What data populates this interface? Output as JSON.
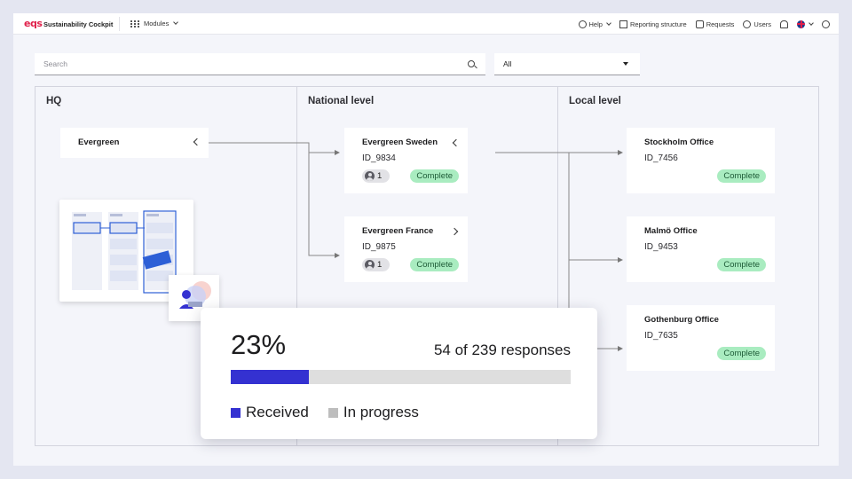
{
  "app": {
    "logo": "eqs",
    "title": "Sustainability Cockpit",
    "modules_label": "Modules"
  },
  "nav": {
    "help": "Help",
    "reporting": "Reporting structure",
    "requests": "Requests",
    "users": "Users"
  },
  "search": {
    "placeholder": "Search"
  },
  "filter": {
    "selected": "All"
  },
  "columns": {
    "hq": "HQ",
    "national": "National level",
    "local": "Local level"
  },
  "hq_card": {
    "name": "Evergreen"
  },
  "national": [
    {
      "name": "Evergreen Sweden",
      "id": "ID_9834",
      "count": "1",
      "status": "Complete"
    },
    {
      "name": "Evergreen France",
      "id": "ID_9875",
      "count": "1",
      "status": "Complete"
    }
  ],
  "local": [
    {
      "name": "Stockholm Office",
      "id": "ID_7456",
      "status": "Complete"
    },
    {
      "name": "Malmö Office",
      "id": "ID_9453",
      "status": "Complete"
    },
    {
      "name": "Gothenburg Office",
      "id": "ID_7635",
      "status": "Complete"
    }
  ],
  "progress": {
    "percent_label": "23%",
    "fraction": 0.23,
    "responses_label": "54 of 239 responses",
    "legend_received": "Received",
    "legend_in_progress": "In progress"
  },
  "colors": {
    "brand": "#e0204a",
    "received": "#3431d1",
    "in_progress": "#bdbdbd",
    "complete_badge": "#a9ecc0",
    "illustration_accent": "#2d5fd6"
  }
}
